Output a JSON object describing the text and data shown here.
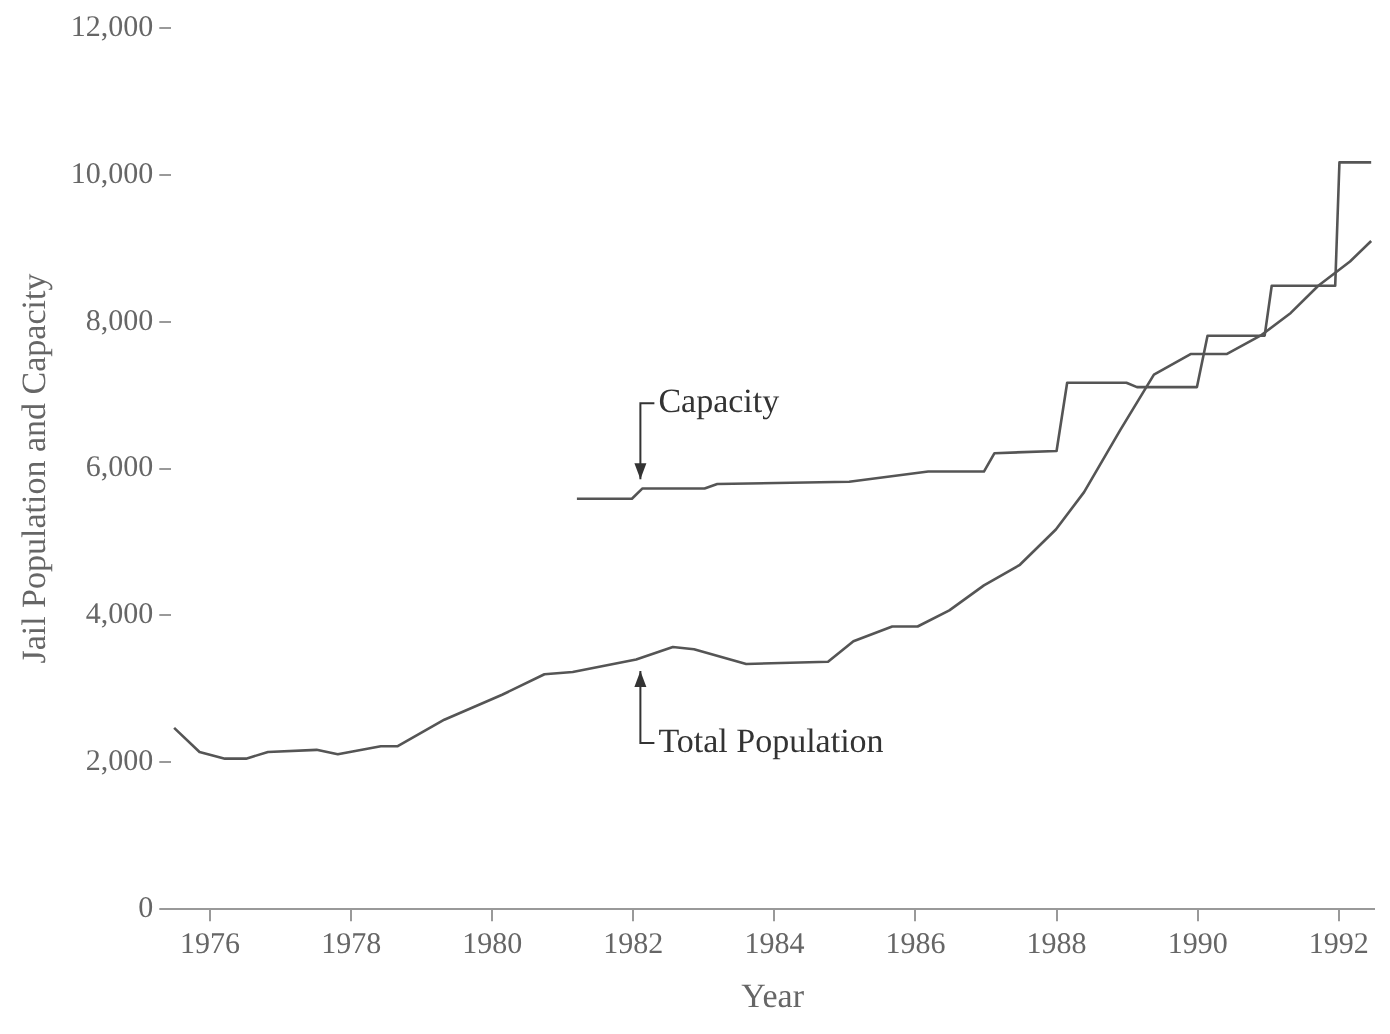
{
  "chart_data": {
    "type": "line",
    "xlabel": "Year",
    "ylabel": "Jail Population and Capacity",
    "xlim": [
      1975.45,
      1992.5
    ],
    "xticks": [
      1976,
      1978,
      1980,
      1982,
      1984,
      1986,
      1988,
      1990,
      1992
    ],
    "ylim": [
      0,
      12000
    ],
    "yticks": [
      0,
      {
        "value": 2000,
        "label": "2,000"
      },
      {
        "value": 4000,
        "label": "4,000"
      },
      {
        "value": 6000,
        "label": "6,000"
      },
      {
        "value": 8000,
        "label": "8,000"
      },
      {
        "value": 10000,
        "label": "10,000"
      },
      {
        "value": 12000,
        "label": "12,000"
      }
    ],
    "grid": false,
    "legend": false,
    "marker": "none",
    "line_style": "solid",
    "series": [
      {
        "color": "#555555",
        "x": [
          1975.49,
          1975.85,
          1976.21,
          1976.51,
          1976.82,
          1977.51,
          1977.81,
          1978.42,
          1978.66,
          1979.32,
          1980.14,
          1980.74,
          1981.14,
          1982.04,
          1982.56,
          1982.86,
          1983.6,
          1984.76,
          1985.12,
          1985.67,
          1986.03,
          1986.48,
          1986.97,
          1987.48,
          1987.99,
          1988.39,
          1988.9,
          1989.38,
          1989.9,
          1990.41,
          1990.89,
          1991.32,
          1991.71,
          1992.16,
          1992.46
        ],
        "values": [
          2470,
          2140,
          2050,
          2050,
          2140,
          2170,
          2110,
          2220,
          2220,
          2580,
          2920,
          3200,
          3230,
          3400,
          3570,
          3540,
          3340,
          3370,
          3650,
          3850,
          3850,
          4070,
          4410,
          4690,
          5170,
          5680,
          6520,
          7280,
          7560,
          7560,
          7810,
          8120,
          8490,
          8820,
          9100
        ]
      },
      {
        "color": "#555555",
        "x": [
          1981.2,
          1981.98,
          1982.13,
          1983.01,
          1983.19,
          1985.06,
          1986.18,
          1986.97,
          1987.12,
          1988.0,
          1988.15,
          1988.99,
          1989.14,
          1989.99,
          1990.14,
          1990.95,
          1991.05,
          1991.95,
          1992.01,
          1992.46
        ],
        "values": [
          5590,
          5590,
          5730,
          5730,
          5790,
          5820,
          5960,
          5960,
          6210,
          6240,
          7170,
          7170,
          7110,
          7110,
          7810,
          7810,
          8490,
          8490,
          10170,
          10170
        ]
      }
    ],
    "annotations": [
      {
        "text": "Capacity",
        "x": 1982.1,
        "y": 5720
      },
      {
        "text": "Total Population",
        "x": 1982.1,
        "y": 3380
      }
    ]
  }
}
